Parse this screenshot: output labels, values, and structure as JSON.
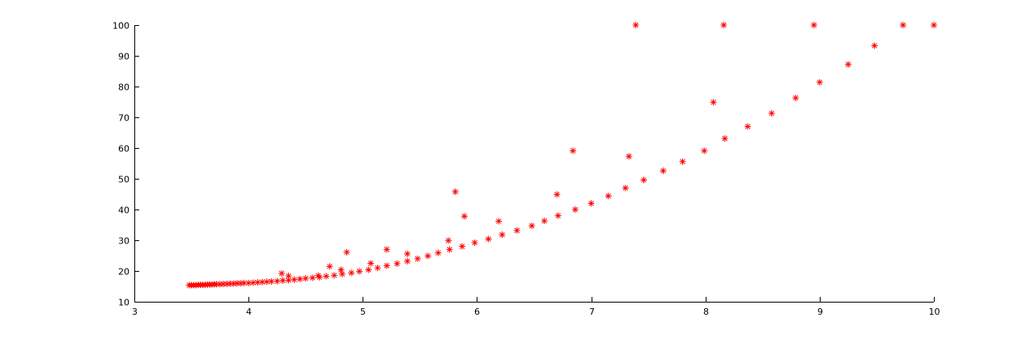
{
  "chart_data": {
    "type": "scatter",
    "title": "",
    "xlabel": "",
    "ylabel": "",
    "xlim": [
      3,
      10
    ],
    "ylim": [
      10,
      100
    ],
    "xticks": [
      "3",
      "4",
      "5",
      "6",
      "7",
      "8",
      "9",
      "10"
    ],
    "yticks": [
      "10",
      "20",
      "30",
      "40",
      "50",
      "60",
      "70",
      "80",
      "90",
      "100"
    ],
    "grid": false,
    "legend": "none",
    "marker": "asterisk",
    "marker_color": "#ff0000",
    "series": [
      {
        "points": [
          [
            3.48,
            15.4
          ],
          [
            3.5,
            15.4
          ],
          [
            3.52,
            15.4
          ],
          [
            3.54,
            15.4
          ],
          [
            3.56,
            15.5
          ],
          [
            3.58,
            15.5
          ],
          [
            3.6,
            15.5
          ],
          [
            3.62,
            15.5
          ],
          [
            3.64,
            15.6
          ],
          [
            3.66,
            15.6
          ],
          [
            3.68,
            15.6
          ],
          [
            3.7,
            15.7
          ],
          [
            3.72,
            15.7
          ],
          [
            3.75,
            15.7
          ],
          [
            3.78,
            15.8
          ],
          [
            3.81,
            15.8
          ],
          [
            3.84,
            15.9
          ],
          [
            3.87,
            15.9
          ],
          [
            3.9,
            16.0
          ],
          [
            3.93,
            16.0
          ],
          [
            3.96,
            16.1
          ],
          [
            4.0,
            16.1
          ],
          [
            4.04,
            16.2
          ],
          [
            4.08,
            16.3
          ],
          [
            4.12,
            16.4
          ],
          [
            4.16,
            16.5
          ],
          [
            4.2,
            16.6
          ],
          [
            4.25,
            16.7
          ],
          [
            4.3,
            16.9
          ],
          [
            4.35,
            17.0
          ],
          [
            4.4,
            17.2
          ],
          [
            4.45,
            17.4
          ],
          [
            4.5,
            17.6
          ],
          [
            4.56,
            17.8
          ],
          [
            4.62,
            18.0
          ],
          [
            4.68,
            18.3
          ],
          [
            4.75,
            18.6
          ],
          [
            4.82,
            19.0
          ],
          [
            4.9,
            19.4
          ],
          [
            4.97,
            19.9
          ],
          [
            5.05,
            20.4
          ],
          [
            5.13,
            21.0
          ],
          [
            5.21,
            21.7
          ],
          [
            5.3,
            22.4
          ],
          [
            5.39,
            23.2
          ],
          [
            5.48,
            24.0
          ],
          [
            5.57,
            24.9
          ],
          [
            5.66,
            25.9
          ],
          [
            5.76,
            27.0
          ],
          [
            5.87,
            28.0
          ],
          [
            5.98,
            29.2
          ],
          [
            6.1,
            30.4
          ],
          [
            6.22,
            31.8
          ],
          [
            6.35,
            33.2
          ],
          [
            6.48,
            34.7
          ],
          [
            6.59,
            36.3
          ],
          [
            6.71,
            38.0
          ],
          [
            6.86,
            40.0
          ],
          [
            7.0,
            42.0
          ],
          [
            7.15,
            44.4
          ],
          [
            7.3,
            47.0
          ],
          [
            7.46,
            49.6
          ],
          [
            7.63,
            52.6
          ],
          [
            7.8,
            55.6
          ],
          [
            7.99,
            59.1
          ],
          [
            8.17,
            63.1
          ],
          [
            8.37,
            67.0
          ],
          [
            8.58,
            71.3
          ],
          [
            8.79,
            76.3
          ],
          [
            9.0,
            81.4
          ],
          [
            9.25,
            87.2
          ],
          [
            9.48,
            93.3
          ],
          [
            9.73,
            100.0
          ],
          [
            10.0,
            100.0
          ],
          [
            4.29,
            19.2
          ],
          [
            4.35,
            18.4
          ],
          [
            4.61,
            18.5
          ],
          [
            4.71,
            21.5
          ],
          [
            4.81,
            20.4
          ],
          [
            4.86,
            26.1
          ],
          [
            5.07,
            22.5
          ],
          [
            5.21,
            27.0
          ],
          [
            5.39,
            25.6
          ],
          [
            5.75,
            29.9
          ],
          [
            5.81,
            45.8
          ],
          [
            5.89,
            37.8
          ],
          [
            6.19,
            36.2
          ],
          [
            6.7,
            44.9
          ],
          [
            6.84,
            59.1
          ],
          [
            7.33,
            57.3
          ],
          [
            7.39,
            100.0
          ],
          [
            8.07,
            74.9
          ],
          [
            8.16,
            100.0
          ],
          [
            8.95,
            100.0
          ]
        ]
      }
    ]
  }
}
